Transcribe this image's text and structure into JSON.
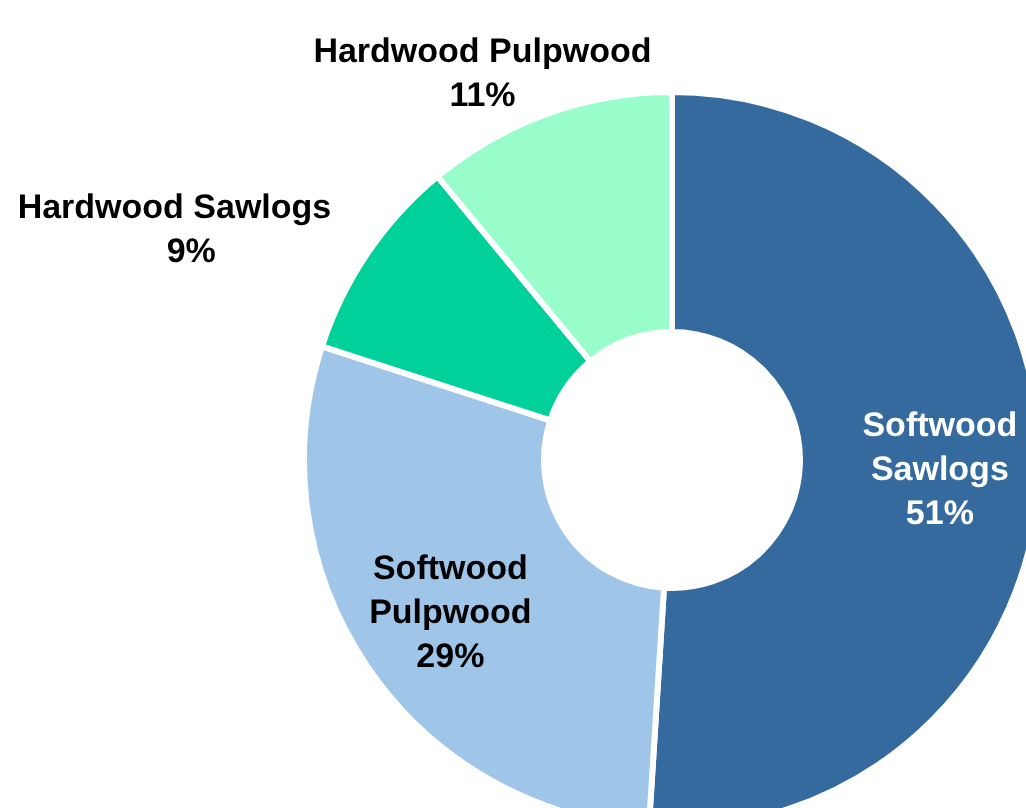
{
  "chart_data": {
    "type": "donut",
    "categories": [
      "Softwood Sawlogs",
      "Softwood Pulpwood",
      "Hardwood Sawlogs",
      "Hardwood Pulpwood"
    ],
    "values": [
      51,
      29,
      9,
      11
    ],
    "colors": [
      "#346a9e",
      "#9fc5e8",
      "#00d09a",
      "#98fccb"
    ],
    "value_labels": [
      "51%",
      "29%",
      "9%",
      "11%"
    ]
  }
}
